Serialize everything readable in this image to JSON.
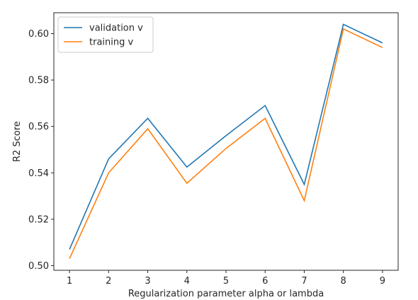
{
  "chart_data": {
    "type": "line",
    "title": "",
    "xlabel": "Regularization parameter alpha or lambda",
    "ylabel": "R2 Score",
    "x": [
      1,
      2,
      3,
      4,
      5,
      6,
      7,
      8,
      9
    ],
    "xticks": [
      "1",
      "2",
      "3",
      "4",
      "5",
      "6",
      "7",
      "8",
      "9"
    ],
    "yticks": [
      "0.50",
      "0.52",
      "0.54",
      "0.56",
      "0.58",
      "0.60"
    ],
    "xlim": [
      0.6,
      9.4
    ],
    "ylim": [
      0.498,
      0.609
    ],
    "grid": false,
    "legend_position": "top-left",
    "series": [
      {
        "name": "validation v",
        "color": "#1f77b4",
        "values": [
          0.507,
          0.546,
          0.5635,
          0.5425,
          0.556,
          0.569,
          0.535,
          0.604,
          0.596
        ]
      },
      {
        "name": "training v",
        "color": "#ff7f0e",
        "values": [
          0.503,
          0.54,
          0.559,
          0.5355,
          0.5505,
          0.5635,
          0.528,
          0.602,
          0.594
        ]
      }
    ]
  }
}
